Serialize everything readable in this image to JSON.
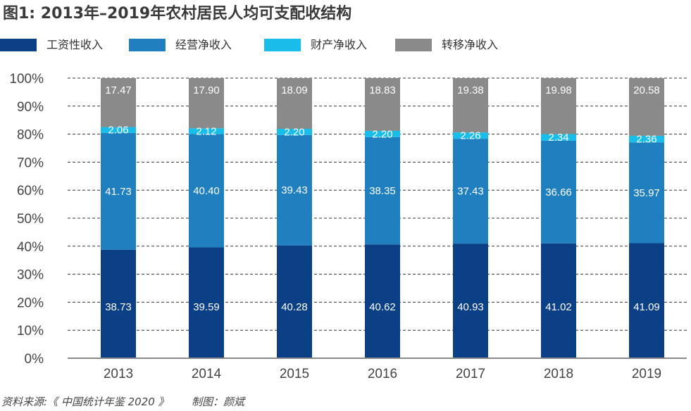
{
  "chart_data": {
    "type": "stacked-bar",
    "title": "图1: 2013年–2019年农村居民人均可支配收结构",
    "categories": [
      "2013",
      "2014",
      "2015",
      "2016",
      "2017",
      "2018",
      "2019"
    ],
    "series": [
      {
        "name": "工资性收入",
        "color": "#0b3f86",
        "values": [
          38.73,
          39.59,
          40.28,
          40.62,
          40.93,
          41.02,
          41.09
        ]
      },
      {
        "name": "经营净收入",
        "color": "#1f7fbf",
        "values": [
          41.73,
          40.4,
          39.43,
          38.35,
          37.43,
          36.66,
          35.97
        ]
      },
      {
        "name": "财产净收入",
        "color": "#19bde9",
        "values": [
          2.06,
          2.12,
          2.2,
          2.2,
          2.26,
          2.34,
          2.36
        ]
      },
      {
        "name": "转移净收入",
        "color": "#8a8a8a",
        "values": [
          17.47,
          17.9,
          18.09,
          18.83,
          19.38,
          19.98,
          20.58
        ]
      }
    ],
    "ylim": [
      0,
      100
    ],
    "yticks": [
      "0%",
      "10%",
      "20%",
      "30%",
      "40%",
      "50%",
      "60%",
      "70%",
      "80%",
      "90%",
      "100%"
    ],
    "grid": true,
    "legend": "top"
  },
  "source": {
    "text": "资料来源:《 中国统计年鉴 2020 》",
    "author": "制图：颜斌"
  }
}
